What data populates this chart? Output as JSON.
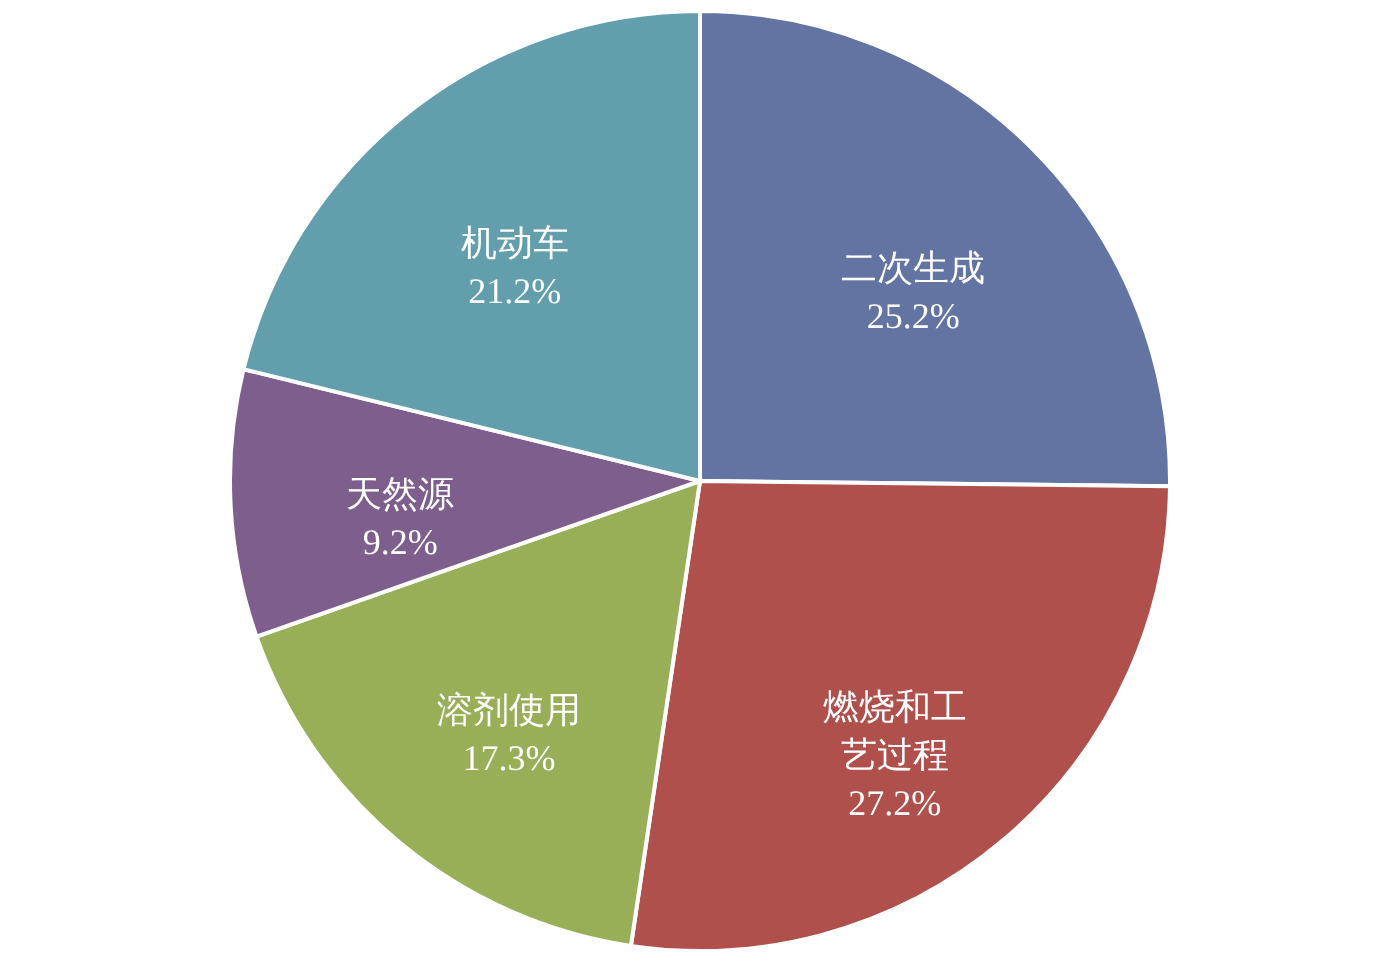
{
  "chart_data": {
    "type": "pie",
    "categories": [
      "二次生成",
      "燃烧和工艺过程",
      "溶剂使用",
      "天然源",
      "机动车"
    ],
    "values": [
      25.2,
      27.2,
      17.3,
      9.2,
      21.2
    ],
    "value_labels": [
      "25.2%",
      "27.2%",
      "17.3%",
      "9.2%",
      "21.2%"
    ],
    "colors": [
      "#6374a3",
      "#b0504c",
      "#98af57",
      "#7d5e8c",
      "#629eac"
    ]
  }
}
